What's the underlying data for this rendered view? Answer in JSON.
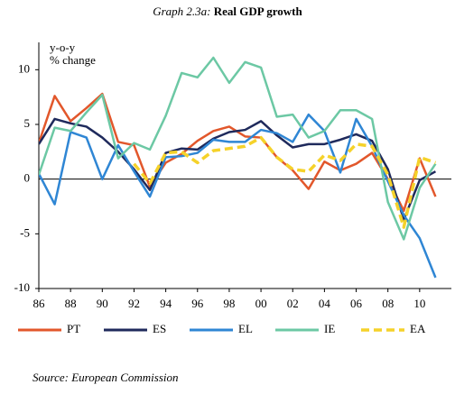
{
  "chart_data": {
    "type": "line",
    "title_prefix": "Graph 2.3a:",
    "title": "Real GDP growth",
    "ylabel": [
      "y-o-y",
      "% change"
    ],
    "source": "Source: European Commission",
    "x": [
      1986,
      1987,
      1988,
      1989,
      1990,
      1991,
      1992,
      1993,
      1994,
      1995,
      1996,
      1997,
      1998,
      1999,
      2000,
      2001,
      2002,
      2003,
      2004,
      2005,
      2006,
      2007,
      2008,
      2009,
      2010,
      2011
    ],
    "xlim": [
      1986,
      2012
    ],
    "xticks": [
      {
        "value": 1986,
        "label": "86"
      },
      {
        "value": 1988,
        "label": "88"
      },
      {
        "value": 1990,
        "label": "90"
      },
      {
        "value": 1992,
        "label": "92"
      },
      {
        "value": 1994,
        "label": "94"
      },
      {
        "value": 1996,
        "label": "96"
      },
      {
        "value": 1998,
        "label": "98"
      },
      {
        "value": 2000,
        "label": "00"
      },
      {
        "value": 2002,
        "label": "02"
      },
      {
        "value": 2004,
        "label": "04"
      },
      {
        "value": 2006,
        "label": "06"
      },
      {
        "value": 2008,
        "label": "08"
      },
      {
        "value": 2010,
        "label": "10"
      }
    ],
    "ylim": [
      -10,
      12.5
    ],
    "yticks": [
      -10,
      -5,
      0,
      5,
      10
    ],
    "series": [
      {
        "name": "PT",
        "color": "#e2572b",
        "dashed": false,
        "values": [
          3.3,
          7.6,
          5.3,
          6.5,
          7.8,
          3.4,
          3.1,
          -0.7,
          1.5,
          2.3,
          3.5,
          4.4,
          4.8,
          3.9,
          3.8,
          2.0,
          0.8,
          -0.9,
          1.6,
          0.8,
          1.4,
          2.4,
          0.0,
          -2.9,
          1.9,
          -1.6
        ]
      },
      {
        "name": "ES",
        "color": "#1f2a5c",
        "dashed": false,
        "values": [
          3.2,
          5.5,
          5.1,
          4.8,
          3.8,
          2.5,
          0.9,
          -1.0,
          2.4,
          2.8,
          2.7,
          3.7,
          4.3,
          4.5,
          5.3,
          4.0,
          2.9,
          3.2,
          3.2,
          3.6,
          4.1,
          3.5,
          0.9,
          -3.7,
          -0.1,
          0.7
        ]
      },
      {
        "name": "EL",
        "color": "#2f86d4",
        "dashed": false,
        "values": [
          0.5,
          -2.3,
          4.3,
          3.8,
          0.0,
          3.1,
          0.7,
          -1.6,
          2.0,
          2.1,
          2.4,
          3.6,
          3.4,
          3.4,
          4.5,
          4.2,
          3.4,
          5.9,
          4.4,
          0.6,
          5.5,
          3.0,
          -0.2,
          -3.3,
          -5.4,
          -9.0
        ]
      },
      {
        "name": "IE",
        "color": "#6cc8a4",
        "dashed": false,
        "values": [
          0.4,
          4.7,
          4.4,
          6.1,
          7.7,
          1.9,
          3.3,
          2.7,
          5.8,
          9.7,
          9.3,
          11.1,
          8.8,
          10.7,
          10.2,
          5.7,
          5.9,
          3.8,
          4.4,
          6.3,
          6.3,
          5.5,
          -2.1,
          -5.5,
          -0.8,
          1.4
        ]
      },
      {
        "name": "EA",
        "color": "#f5d22a",
        "dashed": true,
        "values": [
          null,
          null,
          null,
          null,
          null,
          null,
          1.4,
          -0.4,
          2.4,
          2.5,
          1.5,
          2.6,
          2.8,
          3.0,
          3.8,
          2.0,
          0.9,
          0.7,
          2.2,
          1.7,
          3.2,
          3.0,
          0.4,
          -4.4,
          2.0,
          1.5
        ]
      }
    ]
  }
}
